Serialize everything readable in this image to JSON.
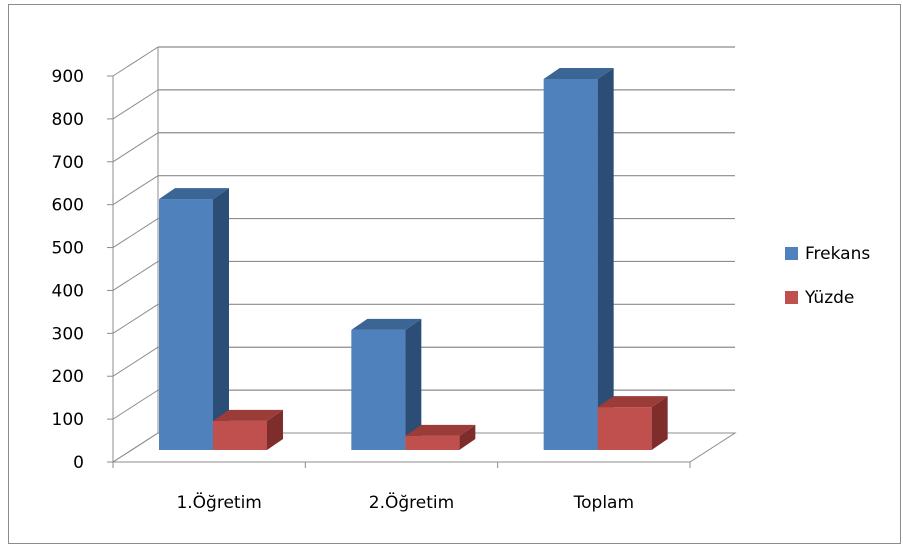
{
  "chart_data": {
    "type": "bar",
    "title": "",
    "xlabel": "",
    "ylabel": "",
    "categories": [
      "1.Öğretim",
      "2.Öğretim",
      "Toplam"
    ],
    "series": [
      {
        "name": "Frekans",
        "values": [
          585,
          280,
          865
        ],
        "color": "#4f81bd",
        "side_color": "#2c4d75",
        "top_color": "#3a6595"
      },
      {
        "name": "Yüzde",
        "values": [
          68,
          33,
          100
        ],
        "color": "#c0504d",
        "side_color": "#7f2d2b",
        "top_color": "#9c3c39"
      }
    ],
    "ylim": [
      0,
      900
    ],
    "yticks": [
      "0",
      "100",
      "200",
      "300",
      "400",
      "500",
      "600",
      "700",
      "800",
      "900"
    ],
    "grid": true,
    "legend": "right",
    "three_d": true
  }
}
